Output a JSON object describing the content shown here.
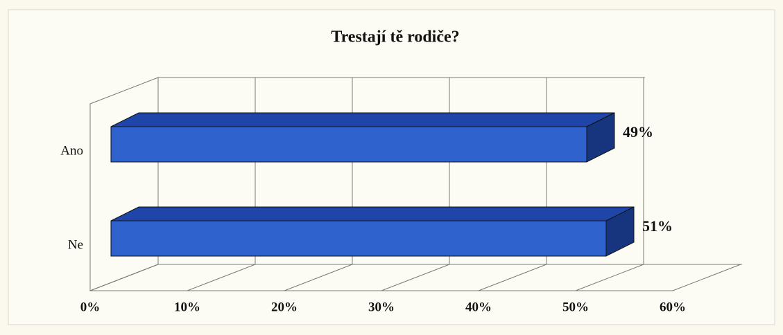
{
  "chart_data": {
    "type": "bar3d_horizontal",
    "title": "Trestají tě rodiče?",
    "categories": [
      "Ano",
      "Ne"
    ],
    "values": [
      49,
      51
    ],
    "value_labels": [
      "49%",
      "51%"
    ],
    "color": "#2f62cc",
    "xlim": [
      0,
      60
    ],
    "xticks": [
      {
        "value": 0,
        "label": "0%"
      },
      {
        "value": 10,
        "label": "10%"
      },
      {
        "value": 20,
        "label": "20%"
      },
      {
        "value": 30,
        "label": "30%"
      },
      {
        "value": 40,
        "label": "40%"
      },
      {
        "value": 50,
        "label": "50%"
      },
      {
        "value": 60,
        "label": "60%"
      }
    ],
    "grid": true
  }
}
